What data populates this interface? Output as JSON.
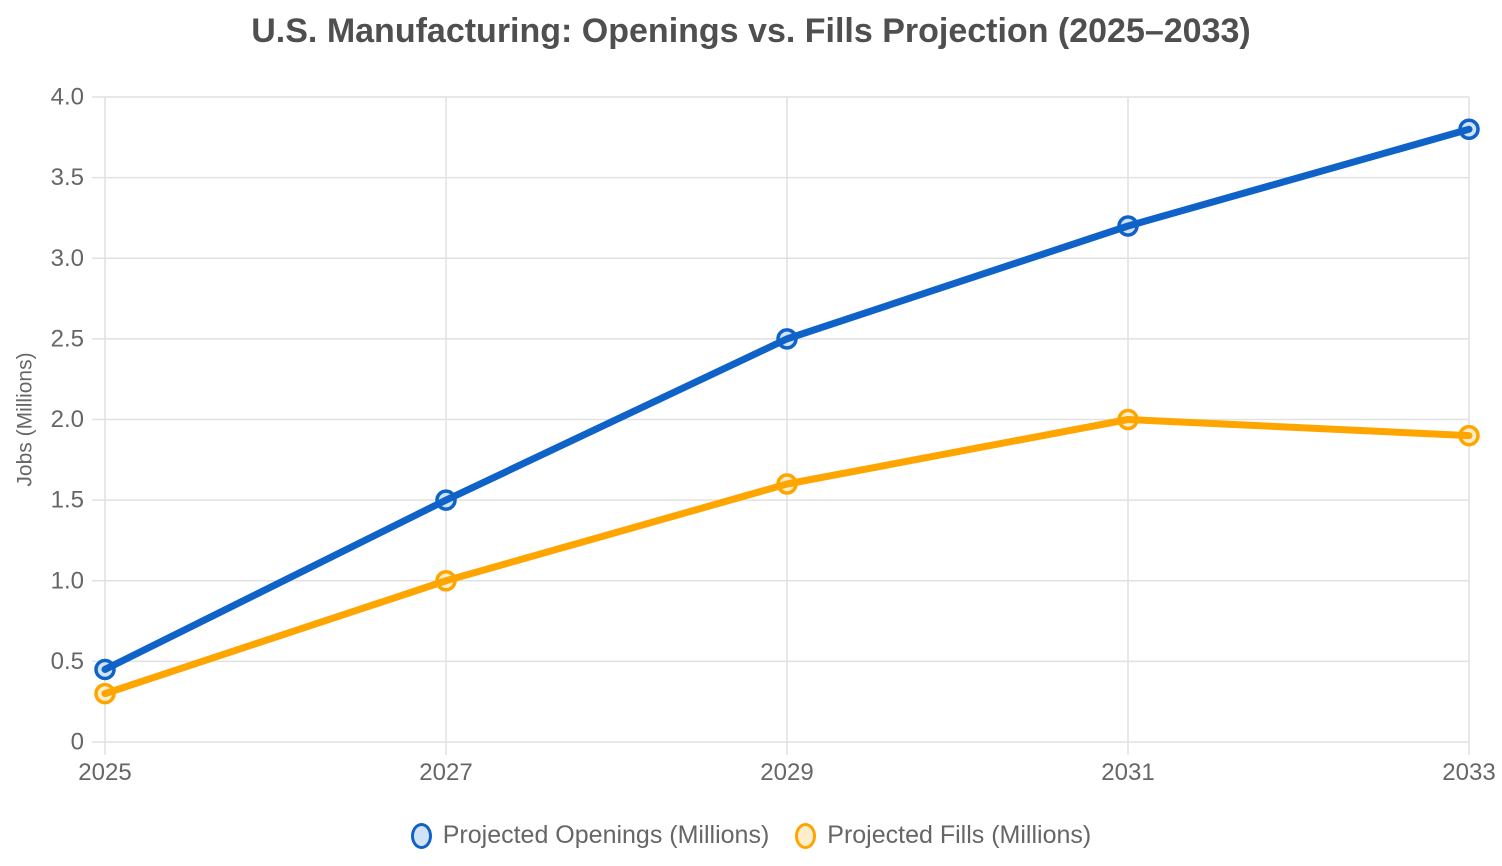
{
  "chart_data": {
    "type": "line",
    "title": "U.S. Manufacturing: Openings vs. Fills Projection (2025–2033)",
    "xlabel": "",
    "ylabel": "Jobs (Millions)",
    "categories": [
      "2025",
      "2027",
      "2029",
      "2031",
      "2033"
    ],
    "series": [
      {
        "name": "Projected Openings (Millions)",
        "values": [
          0.45,
          1.5,
          2.5,
          3.2,
          3.8
        ],
        "color": "#0f63c8",
        "marker_fill": "#cfe2f6"
      },
      {
        "name": "Projected Fills (Millions)",
        "values": [
          0.3,
          1.0,
          1.6,
          2.0,
          1.9
        ],
        "color": "#ffa500",
        "marker_fill": "#fdeecb"
      }
    ],
    "ylim": [
      0,
      4
    ],
    "y_ticks": [
      {
        "value": 0,
        "label": "0"
      },
      {
        "value": 0.5,
        "label": "0.5"
      },
      {
        "value": 1.0,
        "label": "1.0"
      },
      {
        "value": 1.5,
        "label": "1.5"
      },
      {
        "value": 2.0,
        "label": "2.0"
      },
      {
        "value": 2.5,
        "label": "2.5"
      },
      {
        "value": 3.0,
        "label": "3.0"
      },
      {
        "value": 3.5,
        "label": "3.5"
      },
      {
        "value": 4.0,
        "label": "4.0"
      }
    ],
    "grid": true,
    "legend_position": "bottom"
  },
  "colors": {
    "grid": "#e1e1e1",
    "tick_label": "#666666",
    "axis_title": "#666666",
    "title": "#4f4f4f"
  }
}
